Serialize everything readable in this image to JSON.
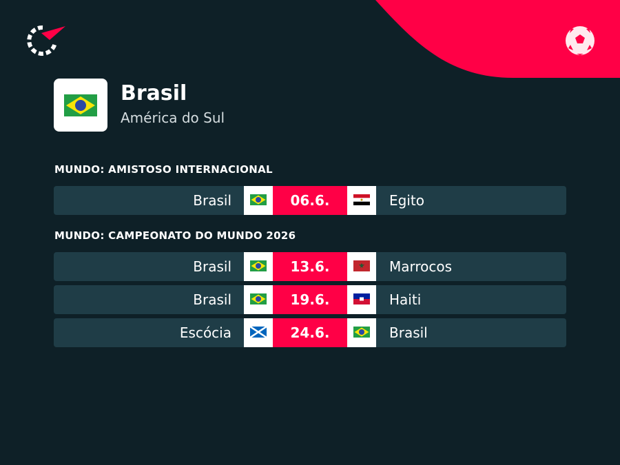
{
  "header": {
    "title": "Brasil",
    "subtitle": "América do Sul"
  },
  "sections": [
    {
      "title": "MUNDO: AMISTOSO INTERNACIONAL",
      "matches": [
        {
          "home": "Brasil",
          "date": "06.6.",
          "away": "Egito"
        }
      ]
    },
    {
      "title": "MUNDO: CAMPEONATO DO MUNDO 2026",
      "matches": [
        {
          "home": "Brasil",
          "date": "13.6.",
          "away": "Marrocos"
        },
        {
          "home": "Brasil",
          "date": "19.6.",
          "away": "Haiti"
        },
        {
          "home": "Escócia",
          "date": "24.6.",
          "away": "Brasil"
        }
      ]
    }
  ]
}
